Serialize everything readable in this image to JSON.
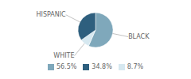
{
  "chart_data": {
    "type": "pie",
    "categories": [
      "BLACK",
      "WHITE",
      "HISPANIC"
    ],
    "values": [
      56.5,
      8.7,
      34.8
    ],
    "value_labels": [
      "56.5%",
      "8.7%",
      "34.8%"
    ],
    "colors": [
      "#7fa8bb",
      "#d6e8f0",
      "#2e5f7e"
    ],
    "legend": "bottom"
  }
}
